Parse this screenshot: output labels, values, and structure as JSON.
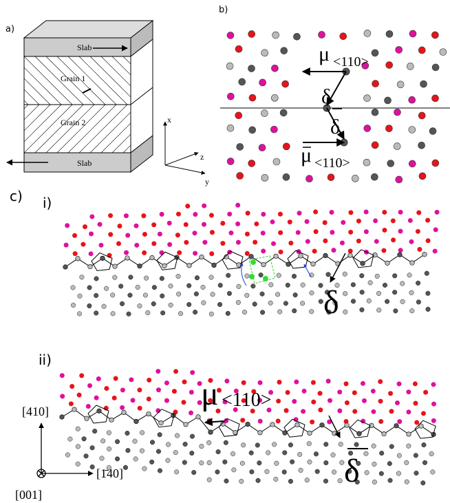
{
  "panel_a": {
    "label": "a)",
    "slab_top": "Slab",
    "slab_bottom": "Slab",
    "grain1": "Grain 1",
    "grain2": "Grain 2",
    "axes": {
      "x": "x",
      "z": "z",
      "y": "y"
    }
  },
  "panel_b": {
    "label": "b)",
    "mu": "μ",
    "mu_sub": "<110>",
    "delta": "δ",
    "delta_bar": "δ",
    "mu_bar": "μ",
    "mu_bar_sub": "<110>"
  },
  "panel_c": {
    "label": "c)",
    "i": {
      "label": "i)",
      "delta": "δ"
    },
    "ii": {
      "label": "ii)",
      "mu": "μ",
      "mu_sub": "<110>",
      "delta_bar": "δ"
    },
    "axes": {
      "up": "[410]",
      "right": "[1̄40]",
      "out": "[001]"
    }
  }
}
